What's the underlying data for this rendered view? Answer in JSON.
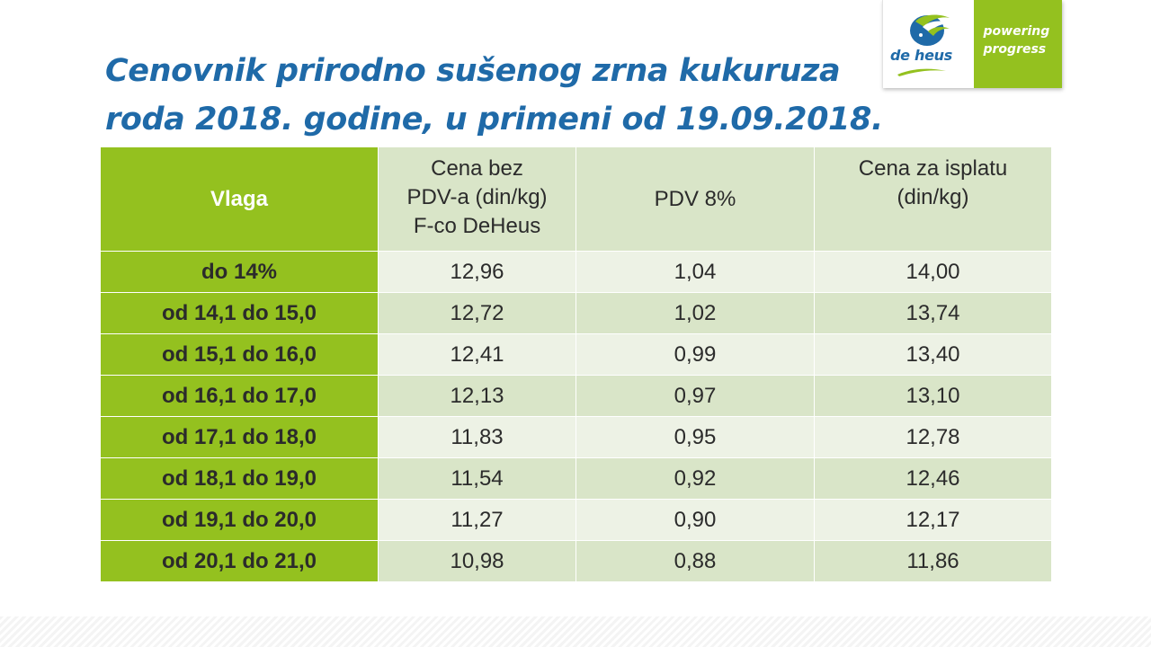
{
  "title": {
    "line1": "Cenovnik prirodno sušenog zrna kukuruza",
    "line2": "roda 2018. godine, u primeni od 19.09.2018."
  },
  "logo": {
    "brand": "de heus",
    "tagline_line1": "powering",
    "tagline_line2": "progress",
    "colors": {
      "brand_blue": "#1f6aa8",
      "brand_green": "#94c11f"
    }
  },
  "table": {
    "headers": {
      "col1": "Vlaga",
      "col2_line1": "Cena bez",
      "col2_line2": "PDV-a (din/kg)",
      "col2_line3": "F-co DeHeus",
      "col3": "PDV 8%",
      "col4_line1": "Cena za isplatu",
      "col4_line2": "(din/kg)"
    },
    "rows": [
      {
        "vlaga": "do 14%",
        "cena_bez_pdv": "12,96",
        "pdv": "1,04",
        "cena_za_isplatu": "14,00"
      },
      {
        "vlaga": "od 14,1 do 15,0",
        "cena_bez_pdv": "12,72",
        "pdv": "1,02",
        "cena_za_isplatu": "13,74"
      },
      {
        "vlaga": "od 15,1 do 16,0",
        "cena_bez_pdv": "12,41",
        "pdv": "0,99",
        "cena_za_isplatu": "13,40"
      },
      {
        "vlaga": "od 16,1 do 17,0",
        "cena_bez_pdv": "12,13",
        "pdv": "0,97",
        "cena_za_isplatu": "13,10"
      },
      {
        "vlaga": "od 17,1 do 18,0",
        "cena_bez_pdv": "11,83",
        "pdv": "0,95",
        "cena_za_isplatu": "12,78"
      },
      {
        "vlaga": "od 18,1 do 19,0",
        "cena_bez_pdv": "11,54",
        "pdv": "0,92",
        "cena_za_isplatu": "12,46"
      },
      {
        "vlaga": "od 19,1 do 20,0",
        "cena_bez_pdv": "11,27",
        "pdv": "0,90",
        "cena_za_isplatu": "12,17"
      },
      {
        "vlaga": "od 20,1 do 21,0",
        "cena_bez_pdv": "10,98",
        "pdv": "0,88",
        "cena_za_isplatu": "11,86"
      }
    ],
    "colors": {
      "label_bg": "#94c11f",
      "header_bg": "#d9e5c8",
      "row_light": "#edf2e5",
      "row_dark": "#d9e5c8"
    }
  }
}
